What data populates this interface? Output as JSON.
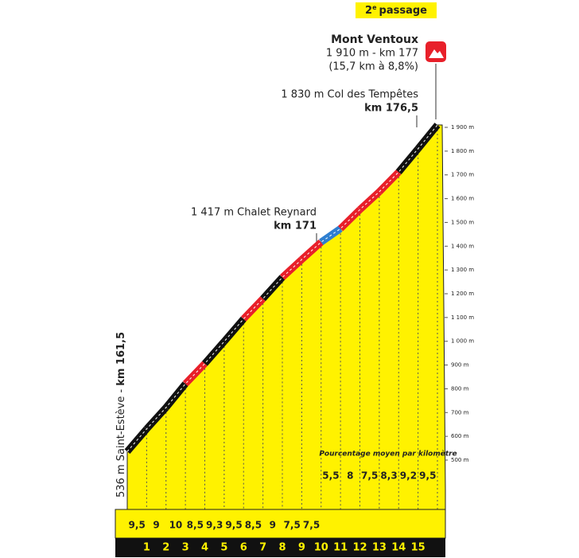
{
  "chart_data": {
    "type": "profile",
    "badge_number": "2",
    "badge_sup": "e",
    "badge_text": "passage",
    "summit_name": "Mont Ventoux",
    "summit_detail": "1 910 m - km 177",
    "summit_note": "(15,7 km à 8,8%)",
    "col_label": "1 830 m Col des Tempêtes",
    "col_km": "km 176,5",
    "chalet_label": "1 417 m Chalet Reynard",
    "chalet_km": "km 171",
    "start_label": "536 m Saint-Estève -",
    "start_km": "km 161,5",
    "gradient_title": "Pourcentage moyen par kilomètre",
    "elevation": [
      536,
      631,
      721,
      821,
      906,
      999,
      1094,
      1179,
      1269,
      1344,
      1417,
      1474,
      1554,
      1629,
      1712,
      1810,
      1910
    ],
    "values": [
      9.5,
      9,
      10,
      8.5,
      9.3,
      9.5,
      8.5,
      9,
      7.5,
      7.5,
      5.5,
      8,
      7.5,
      8.3,
      9.2,
      9.5
    ],
    "value_labels": [
      "9,5",
      "9",
      "10",
      "8,5",
      "9,3",
      "9,5",
      "8,5",
      "9",
      "7,5",
      "7,5",
      "5,5",
      "8",
      "7,5",
      "8,3",
      "9,2",
      "9,5"
    ],
    "segment_colors": [
      "#111111",
      "#111111",
      "#111111",
      "#e8202a",
      "#111111",
      "#111111",
      "#e8202a",
      "#111111",
      "#e8202a",
      "#e8202a",
      "#2f7fd0",
      "#e8202a",
      "#e8202a",
      "#e8202a",
      "#111111",
      "#111111"
    ],
    "km_markers": [
      "1",
      "2",
      "3",
      "4",
      "5",
      "6",
      "7",
      "8",
      "9",
      "10",
      "11",
      "12",
      "13",
      "14",
      "15"
    ],
    "ylim": [
      500,
      1900
    ],
    "yticks": [
      {
        "value": 500,
        "label": "500 m"
      },
      {
        "value": 600,
        "label": "600 m"
      },
      {
        "value": 700,
        "label": "700 m"
      },
      {
        "value": 800,
        "label": "800 m"
      },
      {
        "value": 900,
        "label": "900 m"
      },
      {
        "value": 1000,
        "label": "1 000 m"
      },
      {
        "value": 1100,
        "label": "1 100 m"
      },
      {
        "value": 1200,
        "label": "1 200 m"
      },
      {
        "value": 1300,
        "label": "1 300 m"
      },
      {
        "value": 1400,
        "label": "1 400 m"
      },
      {
        "value": 1500,
        "label": "1 500 m"
      },
      {
        "value": 1600,
        "label": "1 600 m"
      },
      {
        "value": 1700,
        "label": "1 700 m"
      },
      {
        "value": 1800,
        "label": "1 800 m"
      },
      {
        "value": 1900,
        "label": "1 900 m"
      }
    ],
    "fill_color": "#fff200"
  }
}
